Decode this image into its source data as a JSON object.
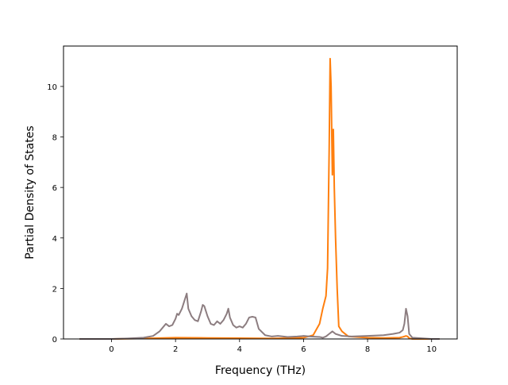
{
  "chart_data": {
    "type": "line",
    "xlabel": "Frequency (THz)",
    "ylabel": "Partial Density of States",
    "xlim": [
      -1.5,
      10.8
    ],
    "ylim": [
      0,
      11.6
    ],
    "xticks": [
      0,
      2,
      4,
      6,
      8,
      10
    ],
    "yticks": [
      0,
      2,
      4,
      6,
      8,
      10
    ],
    "grid": false,
    "series": [
      {
        "color": "#ff7f0e",
        "x": [
          -1.0,
          0.0,
          1.0,
          2.0,
          3.0,
          4.0,
          5.0,
          5.5,
          6.0,
          6.3,
          6.5,
          6.6,
          6.7,
          6.75,
          6.8,
          6.83,
          6.86,
          6.9,
          6.93,
          6.96,
          7.0,
          7.05,
          7.1,
          7.2,
          7.4,
          8.0,
          8.5,
          9.0,
          9.1,
          9.2,
          9.25,
          9.3,
          9.4,
          10.0,
          10.25
        ],
        "y": [
          0.0,
          0.0,
          0.02,
          0.05,
          0.04,
          0.03,
          0.02,
          0.03,
          0.05,
          0.15,
          0.6,
          1.2,
          1.7,
          2.8,
          7.5,
          11.1,
          10.0,
          6.5,
          8.3,
          6.0,
          4.0,
          2.0,
          0.5,
          0.3,
          0.1,
          0.05,
          0.04,
          0.05,
          0.08,
          0.12,
          0.1,
          0.03,
          0.0,
          0.0,
          0.0
        ]
      },
      {
        "color": "#8c7d80",
        "x": [
          -1.0,
          0.0,
          0.5,
          1.0,
          1.3,
          1.5,
          1.6,
          1.7,
          1.8,
          1.9,
          2.0,
          2.05,
          2.1,
          2.2,
          2.3,
          2.35,
          2.4,
          2.5,
          2.6,
          2.7,
          2.8,
          2.85,
          2.9,
          3.0,
          3.1,
          3.2,
          3.3,
          3.4,
          3.5,
          3.6,
          3.65,
          3.7,
          3.8,
          3.9,
          4.0,
          4.1,
          4.2,
          4.3,
          4.4,
          4.5,
          4.6,
          4.8,
          5.0,
          5.2,
          5.5,
          5.8,
          6.0,
          6.2,
          6.5,
          6.6,
          6.7,
          6.8,
          6.85,
          6.9,
          7.0,
          7.2,
          7.5,
          8.0,
          8.5,
          8.8,
          9.0,
          9.1,
          9.15,
          9.2,
          9.25,
          9.3,
          9.4,
          10.0,
          10.25
        ],
        "y": [
          0.0,
          0.0,
          0.02,
          0.05,
          0.12,
          0.3,
          0.45,
          0.6,
          0.5,
          0.55,
          0.8,
          1.0,
          0.95,
          1.2,
          1.6,
          1.8,
          1.2,
          0.9,
          0.75,
          0.7,
          1.1,
          1.35,
          1.3,
          0.9,
          0.6,
          0.55,
          0.7,
          0.6,
          0.75,
          1.0,
          1.2,
          0.85,
          0.55,
          0.45,
          0.5,
          0.45,
          0.6,
          0.85,
          0.88,
          0.85,
          0.4,
          0.15,
          0.1,
          0.12,
          0.08,
          0.1,
          0.12,
          0.1,
          0.08,
          0.05,
          0.1,
          0.2,
          0.25,
          0.3,
          0.2,
          0.12,
          0.1,
          0.12,
          0.15,
          0.2,
          0.25,
          0.35,
          0.6,
          1.2,
          0.9,
          0.2,
          0.05,
          0.0,
          0.0
        ]
      }
    ]
  }
}
